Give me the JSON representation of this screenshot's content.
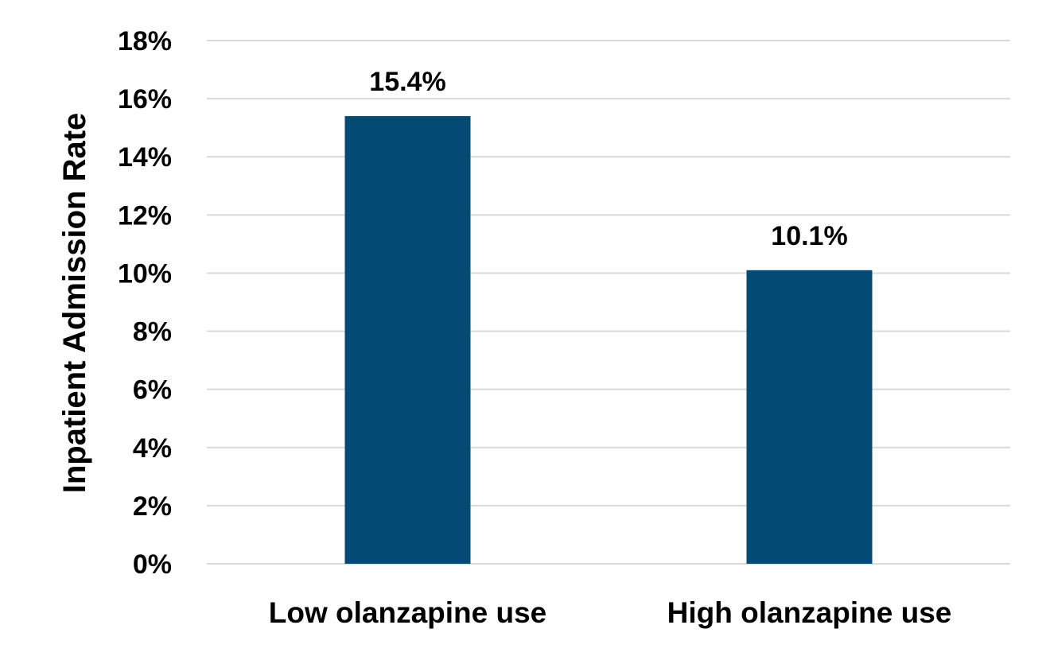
{
  "chart_data": {
    "type": "bar",
    "categories": [
      "Low olanzapine use",
      "High olanzapine use"
    ],
    "series": [
      {
        "values": [
          15.4,
          10.1
        ],
        "color": "#034a74"
      }
    ],
    "data_labels": [
      "15.4%",
      "10.1%"
    ],
    "title": "",
    "xlabel": "",
    "ylabel": "Inpatient Admission Rate",
    "ylim": [
      0,
      18
    ],
    "yticks": [
      0,
      2,
      4,
      6,
      8,
      10,
      12,
      14,
      16,
      18
    ],
    "ytick_labels": [
      "0%",
      "2%",
      "4%",
      "6%",
      "8%",
      "10%",
      "12%",
      "14%",
      "16%",
      "18%"
    ],
    "grid": true,
    "legend": "none"
  }
}
